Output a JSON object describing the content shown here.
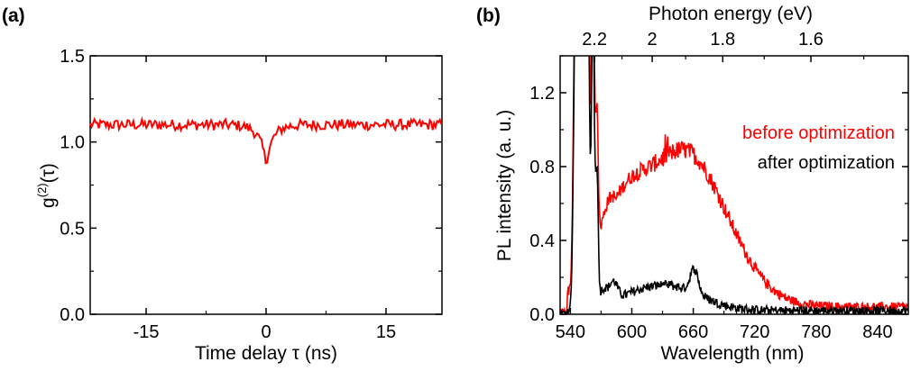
{
  "chart_data": [
    {
      "panel": "(a)",
      "type": "line",
      "title": "",
      "xlabel": "Time delay τ (ns)",
      "ylabel": "g(2)(τ)",
      "ylabel_main": "g",
      "ylabel_sup": "(2)",
      "ylabel_arg": "(τ)",
      "xlim": [
        -22,
        22
      ],
      "ylim": [
        0.0,
        1.5
      ],
      "xticks": [
        -15,
        0,
        15
      ],
      "xtick_labels": [
        "-15",
        "0",
        "15"
      ],
      "yticks": [
        0.0,
        0.5,
        1.0,
        1.5
      ],
      "ytick_labels": [
        "0.0",
        "0.5",
        "1.0",
        "1.5"
      ],
      "series": [
        {
          "name": "g2",
          "color": "#ff0000",
          "baseline": 1.1,
          "dip_center": 0.0,
          "dip_min": 0.88,
          "noise": 0.02
        }
      ]
    },
    {
      "panel": "(b)",
      "type": "line",
      "title": "",
      "xlabel": "Wavelength (nm)",
      "ylabel": "PL intensity (a. u.)",
      "top_xlabel": "Photon energy (eV)",
      "xlim": [
        530,
        870
      ],
      "ylim": [
        0.0,
        1.4
      ],
      "xticks": [
        540,
        600,
        660,
        720,
        780,
        840
      ],
      "xtick_labels": [
        "540",
        "600",
        "660",
        "720",
        "780",
        "840"
      ],
      "yticks": [
        0.0,
        0.4,
        0.8,
        1.2
      ],
      "ytick_labels": [
        "0.0",
        "0.4",
        "0.8",
        "1.2"
      ],
      "top_ticks_ev": [
        2.2,
        2.0,
        1.8,
        1.6
      ],
      "top_tick_labels": [
        "2.2",
        "2",
        "1.8",
        "1.6"
      ],
      "legend": [
        "before optimization",
        "after optimization"
      ],
      "series": [
        {
          "name": "before optimization",
          "color": "#ff0000",
          "peak_wavelength": 650,
          "peak_value": 0.85,
          "tail_value": 0.04
        },
        {
          "name": "after optimization",
          "color": "#000000",
          "peak_wavelength": 658,
          "peak_value": 0.25,
          "tail_value": 0.02
        }
      ]
    }
  ]
}
